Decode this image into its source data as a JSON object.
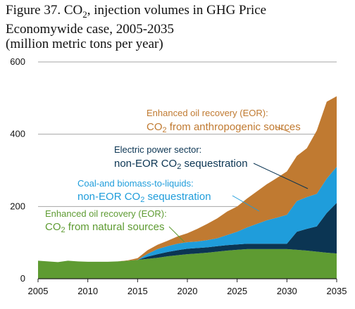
{
  "title": {
    "line1_pre": "Figure 37. CO",
    "line1_sub": "2",
    "line1_post": ", injection volumes in GHG Price",
    "line2": "Economywide case, 2005-2035",
    "line3": "(million metric tons per year)"
  },
  "colors": {
    "natural": "#5e9b32",
    "coal_biomass": "#1f9ddb",
    "electric": "#0b3553",
    "anthropogenic": "#c07a31",
    "gridline": "#a6a6a6",
    "axis": "#222222"
  },
  "chart_data": {
    "type": "area",
    "stacked": true,
    "title": "Figure 37. CO2, injection volumes in GHG Price Economywide case, 2005-2035",
    "ylabel": "(million metric tons per year)",
    "xlabel": "",
    "xlim": [
      2005,
      2035
    ],
    "ylim": [
      0,
      600
    ],
    "yticks": [
      0,
      200,
      400,
      600
    ],
    "xticks": [
      2005,
      2010,
      2015,
      2020,
      2025,
      2030,
      2035
    ],
    "grid": "horizontal",
    "x": [
      2005,
      2006,
      2007,
      2008,
      2009,
      2010,
      2011,
      2012,
      2013,
      2014,
      2015,
      2016,
      2017,
      2018,
      2019,
      2020,
      2021,
      2022,
      2023,
      2024,
      2025,
      2026,
      2027,
      2028,
      2029,
      2030,
      2031,
      2032,
      2033,
      2034,
      2035
    ],
    "series": [
      {
        "key": "natural",
        "name": "Enhanced oil recovery (EOR): CO2 from natural sources",
        "values": [
          50,
          48,
          46,
          50,
          48,
          47,
          47,
          47,
          48,
          50,
          52,
          55,
          58,
          62,
          65,
          68,
          70,
          72,
          75,
          78,
          80,
          82,
          82,
          82,
          82,
          82,
          80,
          78,
          75,
          72,
          70
        ]
      },
      {
        "key": "electric",
        "name": "Electric power sector: non-EOR CO2 sequestration",
        "values": [
          0,
          0,
          0,
          0,
          0,
          0,
          0,
          0,
          0,
          0,
          0,
          6,
          10,
          12,
          14,
          15,
          15,
          15,
          15,
          15,
          15,
          15,
          15,
          15,
          15,
          15,
          50,
          60,
          70,
          110,
          140
        ]
      },
      {
        "key": "coal_biomass",
        "name": "Coal-and biomass-to-liquids: non-EOR CO2 sequestration",
        "values": [
          0,
          0,
          0,
          0,
          0,
          0,
          0,
          0,
          0,
          0,
          0,
          8,
          14,
          16,
          18,
          18,
          18,
          20,
          22,
          28,
          35,
          45,
          55,
          65,
          72,
          80,
          85,
          88,
          90,
          95,
          100
        ]
      },
      {
        "key": "anthropogenic",
        "name": "Enhanced oil recovery (EOR): CO2 from anthropogenic sources",
        "values": [
          0,
          0,
          0,
          0,
          0,
          0,
          0,
          0,
          0,
          1,
          5,
          10,
          12,
          15,
          20,
          25,
          35,
          45,
          55,
          65,
          70,
          80,
          90,
          100,
          110,
          120,
          125,
          135,
          175,
          213,
          195
        ]
      }
    ],
    "annotations": [
      {
        "key": "anthropogenic",
        "line1": "Enhanced oil recovery (EOR):",
        "line2_pre": "CO",
        "line2_sub": "2",
        "line2_post": " from anthropogenic sources"
      },
      {
        "key": "electric",
        "line1": "Electric power sector:",
        "line2_pre": "non-EOR CO",
        "line2_sub": "2",
        "line2_post": " sequestration"
      },
      {
        "key": "coal_biomass",
        "line1": "Coal-and biomass-to-liquids:",
        "line2_pre": "non-EOR CO",
        "line2_sub": "2",
        "line2_post": " sequestration"
      },
      {
        "key": "natural",
        "line1": "Enhanced oil recovery (EOR):",
        "line2_pre": "CO",
        "line2_sub": "2",
        "line2_post": " from natural sources"
      }
    ]
  }
}
